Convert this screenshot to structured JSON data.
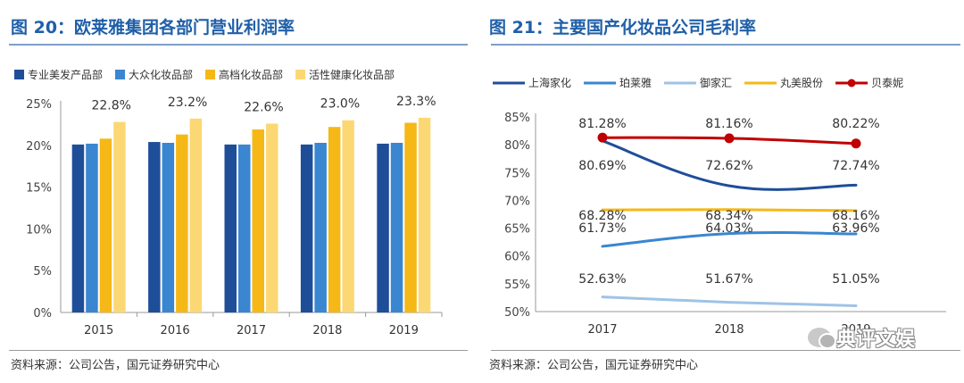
{
  "left": {
    "title": "图 20：欧莱雅集团各部门营业利润率",
    "source": "资料来源：公司公告，国元证券研究中心"
  },
  "right": {
    "title": "图 21：主要国产化妆品公司毛利率",
    "source": "资料来源：公司公告，国元证券研究中心"
  },
  "watermark": {
    "text": "典评文娱",
    "icon": "wechat-icon"
  },
  "chart_data": [
    {
      "type": "bar",
      "categories": [
        "2015",
        "2016",
        "2017",
        "2018",
        "2019"
      ],
      "series": [
        {
          "name": "专业美发产品部",
          "color": "#1f4e99",
          "values": [
            20.1,
            20.4,
            20.1,
            20.1,
            20.2
          ]
        },
        {
          "name": "大众化妆品部",
          "color": "#3a86d0",
          "values": [
            20.2,
            20.3,
            20.1,
            20.3,
            20.3
          ]
        },
        {
          "name": "高档化妆品部",
          "color": "#f5b816",
          "values": [
            20.8,
            21.3,
            21.9,
            22.2,
            22.7
          ]
        },
        {
          "name": "活性健康化妆品部",
          "color": "#fcd874",
          "values": [
            22.8,
            23.2,
            22.6,
            23.0,
            23.3
          ]
        }
      ],
      "data_labels": [
        "22.8%",
        "23.2%",
        "22.6%",
        "23.0%",
        "23.3%"
      ],
      "y_ticks": [
        "0%",
        "5%",
        "10%",
        "15%",
        "20%",
        "25%"
      ],
      "ylim": [
        0,
        25
      ],
      "legend": "top",
      "grid": false
    },
    {
      "type": "line",
      "categories": [
        "2017",
        "2018",
        "2019"
      ],
      "series": [
        {
          "name": "上海家化",
          "color": "#1f4e99",
          "values": [
            80.69,
            72.62,
            72.74
          ]
        },
        {
          "name": "珀莱雅",
          "color": "#3a86d0",
          "values": [
            61.73,
            64.03,
            63.96
          ]
        },
        {
          "name": "御家汇",
          "color": "#9ec3e6",
          "values": [
            52.63,
            51.67,
            51.05
          ]
        },
        {
          "name": "丸美股份",
          "color": "#f5b816",
          "values": [
            68.28,
            68.34,
            68.16
          ]
        },
        {
          "name": "贝泰妮",
          "color": "#c00000",
          "values": [
            81.28,
            81.16,
            80.22
          ],
          "markers": true
        }
      ],
      "label_rows": [
        [
          "81.28%",
          "81.16%",
          "80.22%"
        ],
        [
          "80.69%",
          "72.62%",
          "72.74%"
        ],
        [
          "68.28%",
          "68.34%",
          "68.16%"
        ],
        [
          "61.73%",
          "64.03%",
          "63.96%"
        ],
        [
          "52.63%",
          "51.67%",
          "51.05%"
        ]
      ],
      "y_ticks": [
        "50%",
        "55%",
        "60%",
        "65%",
        "70%",
        "75%",
        "80%",
        "85%"
      ],
      "ylim": [
        50,
        85
      ],
      "legend": "top",
      "grid": false
    }
  ]
}
